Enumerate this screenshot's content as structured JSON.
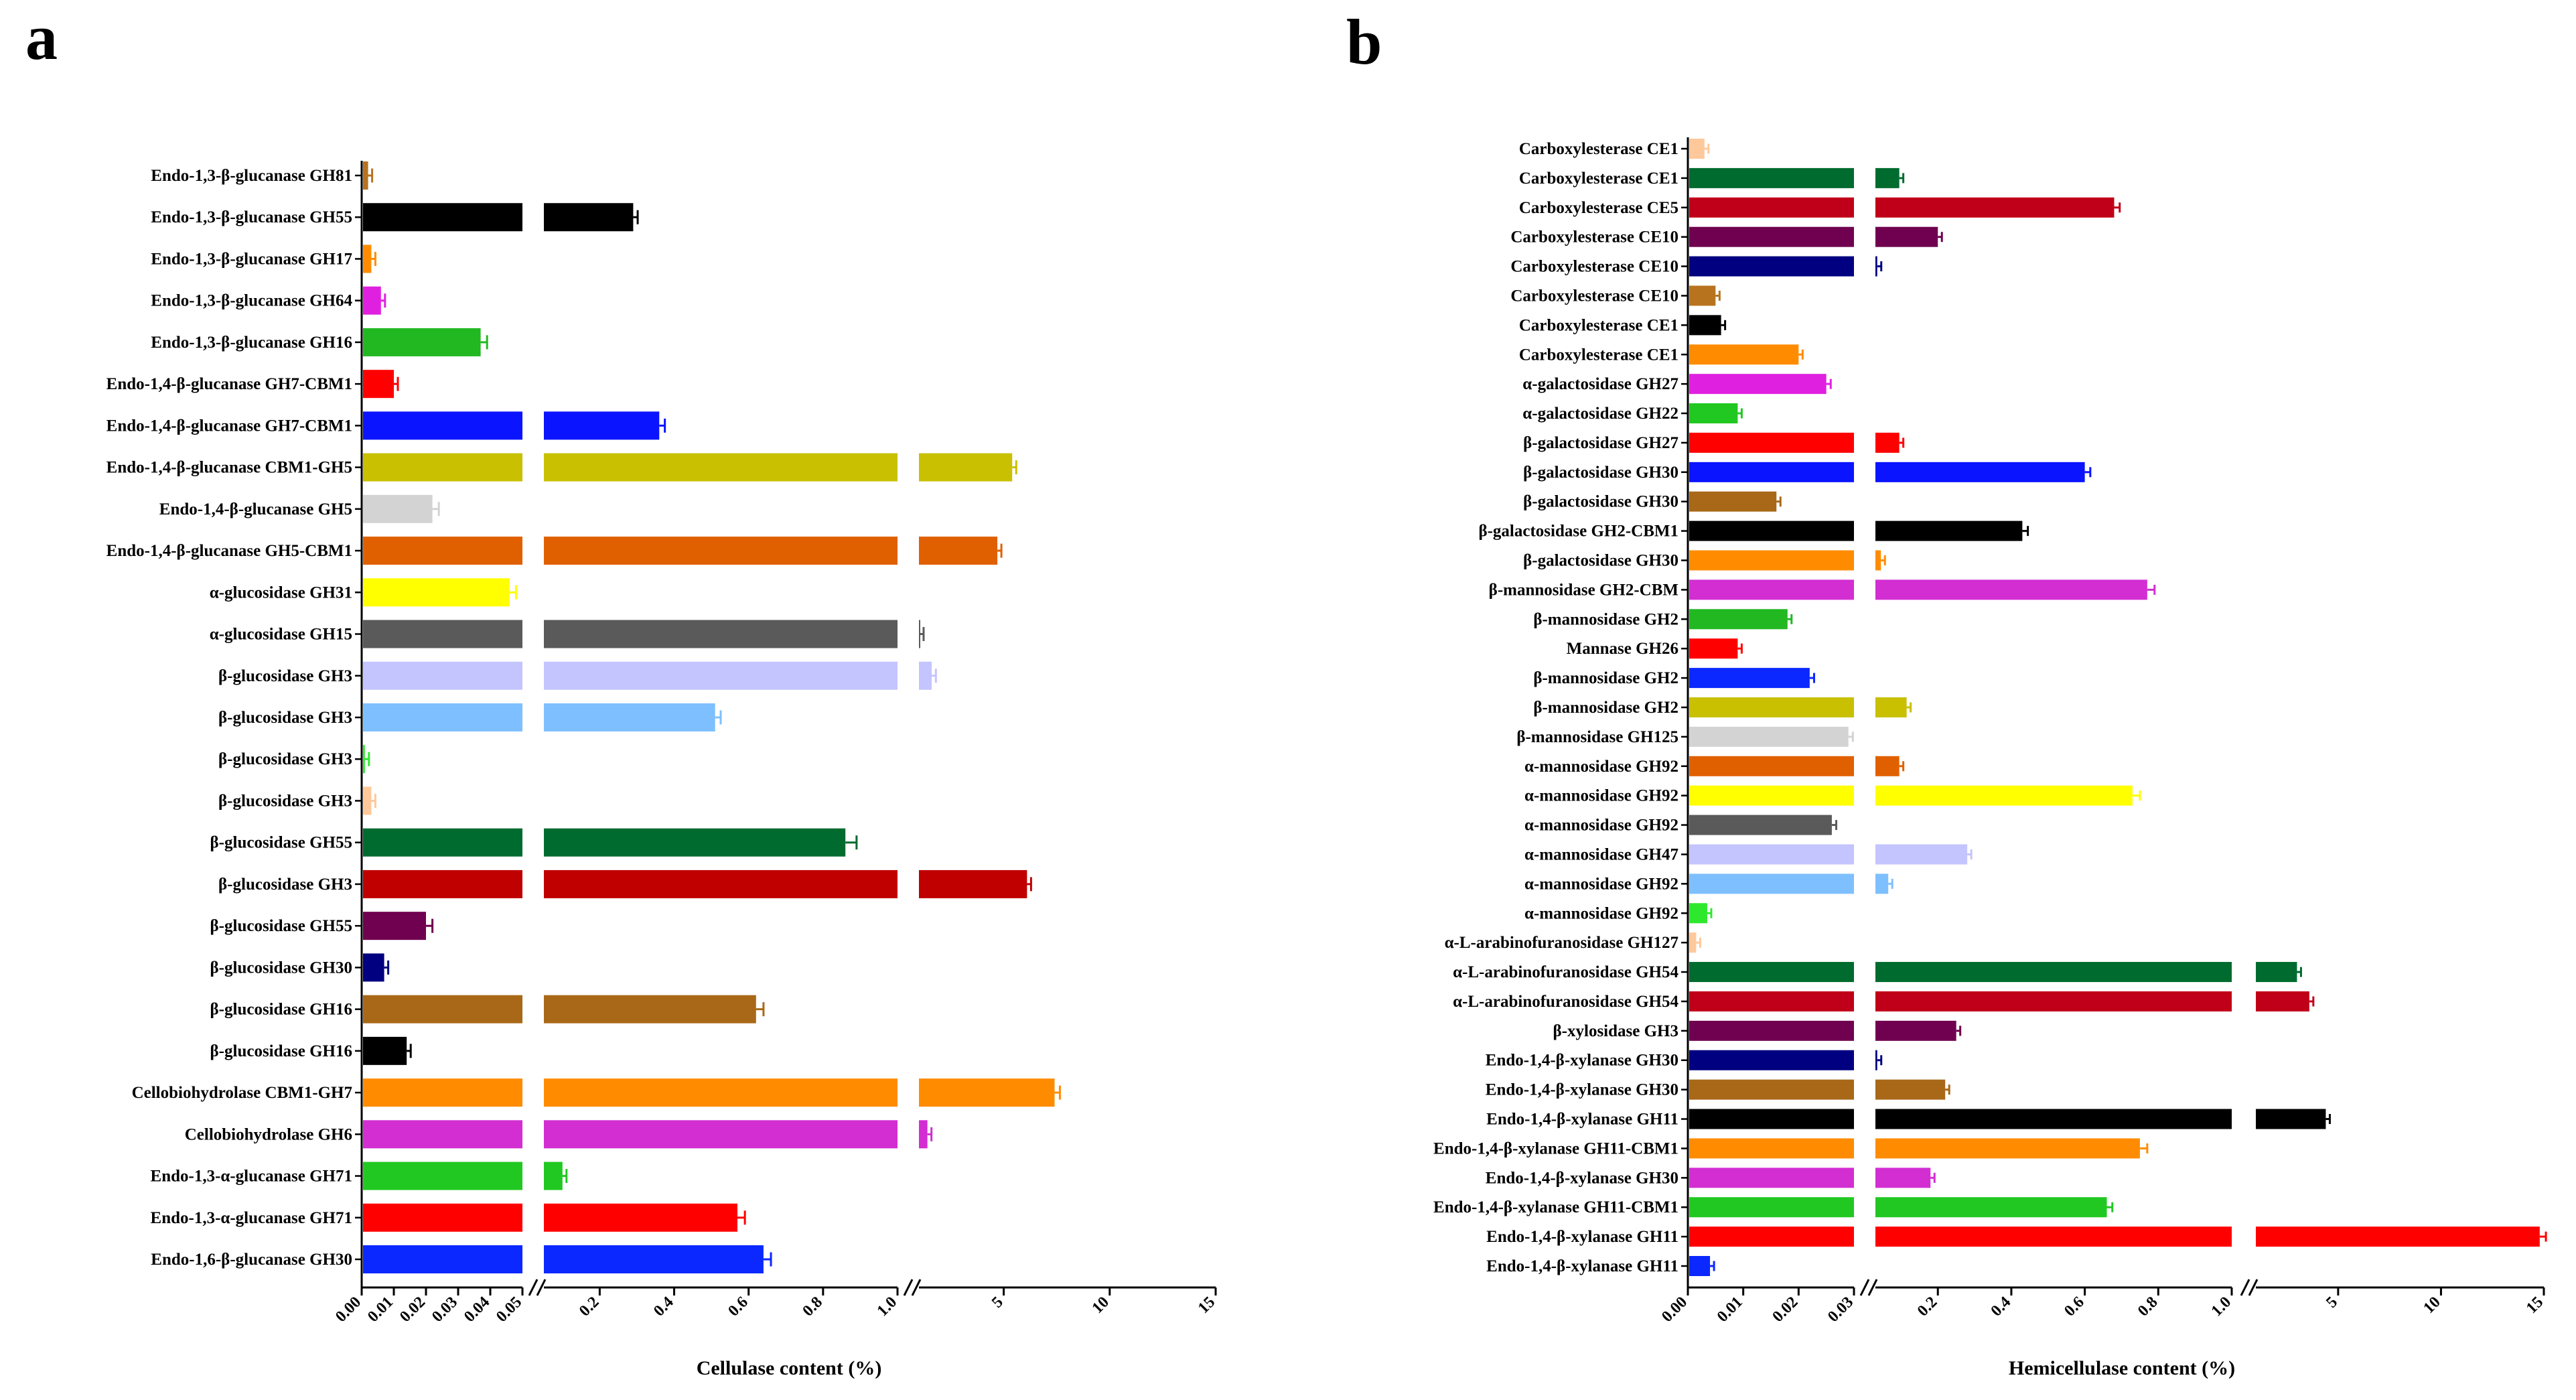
{
  "chart_data": [
    {
      "type": "bar",
      "orientation": "horizontal",
      "panel": "a",
      "xlabel": "Cellulase content (%)",
      "axis_segments": [
        {
          "range": [
            0,
            0.05
          ],
          "ticks": [
            "0.00",
            "0.01",
            "0.02",
            "0.03",
            "0.04",
            "0.05"
          ]
        },
        {
          "range": [
            0.05,
            1.0
          ],
          "ticks": [
            "0.2",
            "0.4",
            "0.6",
            "0.8",
            "1.0"
          ]
        },
        {
          "range": [
            1.0,
            15
          ],
          "ticks": [
            "5",
            "10",
            "15"
          ]
        }
      ],
      "categories": [
        "Endo-1,3-β-glucanase GH81",
        "Endo-1,3-β-glucanase GH55",
        "Endo-1,3-β-glucanase GH17",
        "Endo-1,3-β-glucanase GH64",
        "Endo-1,3-β-glucanase GH16",
        "Endo-1,4-β-glucanase GH7-CBM1",
        "Endo-1,4-β-glucanase GH7-CBM1",
        "Endo-1,4-β-glucanase CBM1-GH5",
        "Endo-1,4-β-glucanase GH5",
        "Endo-1,4-β-glucanase GH5-CBM1",
        "α-glucosidase GH31",
        "α-glucosidase GH15",
        "β-glucosidase GH3",
        "β-glucosidase GH3",
        "β-glucosidase GH3",
        "β-glucosidase GH3",
        "β-glucosidase GH55",
        "β-glucosidase GH3",
        "β-glucosidase GH55",
        "β-glucosidase GH30",
        "β-glucosidase GH16",
        "β-glucosidase GH16",
        "Cellobiohydrolase CBM1-GH7",
        "Cellobiohydrolase GH6",
        "Endo-1,3-α-glucanase GH71",
        "Endo-1,3-α-glucanase GH71",
        "Endo-1,6-β-glucanase GH30"
      ],
      "values": [
        0.002,
        0.29,
        0.003,
        0.006,
        0.037,
        0.01,
        0.36,
        5.4,
        0.022,
        4.7,
        0.046,
        1.03,
        1.6,
        0.51,
        0.001,
        0.003,
        0.86,
        6.1,
        0.02,
        0.007,
        0.62,
        0.014,
        7.4,
        1.4,
        0.1,
        0.57,
        0.64
      ],
      "errors": [
        0.0003,
        0.012,
        0.0003,
        0.0005,
        0.002,
        0.0005,
        0.015,
        0.15,
        0.002,
        0.12,
        0.002,
        0.01,
        0.2,
        0.015,
        0.0002,
        0.0003,
        0.03,
        0.15,
        0.002,
        0.0005,
        0.02,
        0.001,
        0.25,
        0.15,
        0.005,
        0.02,
        0.02
      ],
      "colors": [
        "#B8731F",
        "#000000",
        "#FF8C00",
        "#E020E0",
        "#22B822",
        "#FF0000",
        "#0A14FF",
        "#C8C000",
        "#D3D3D3",
        "#E06000",
        "#FFFF00",
        "#5A5A5A",
        "#C4C4FF",
        "#7EC0FF",
        "#2EE82E",
        "#FFC89A",
        "#006B2E",
        "#C00000",
        "#700050",
        "#000080",
        "#A86818",
        "#000000",
        "#FF8C00",
        "#D22ED2",
        "#22C822",
        "#FF0000",
        "#0A28FF"
      ]
    },
    {
      "type": "bar",
      "orientation": "horizontal",
      "panel": "b",
      "xlabel": "Hemicellulase content (%)",
      "axis_segments": [
        {
          "range": [
            0,
            0.03
          ],
          "ticks": [
            "0.00",
            "0.01",
            "0.02",
            "0.03"
          ]
        },
        {
          "range": [
            0.03,
            1.0
          ],
          "ticks": [
            "0.2",
            "0.4",
            "0.6",
            "0.8",
            "1.0"
          ]
        },
        {
          "range": [
            1.0,
            15
          ],
          "ticks": [
            "5",
            "10",
            "15"
          ]
        }
      ],
      "categories": [
        "Carboxylesterase CE1",
        "Carboxylesterase CE1",
        "Carboxylesterase CE5",
        "Carboxylesterase CE10",
        "Carboxylesterase CE10",
        "Carboxylesterase CE10",
        "Carboxylesterase CE1",
        "Carboxylesterase CE1",
        "α-galactosidase GH27",
        "α-galactosidase GH22",
        "β-galactosidase GH27",
        "β-galactosidase GH30",
        "β-galactosidase GH30",
        "β-galactosidase GH2-CBM1",
        "β-galactosidase GH30",
        "β-mannosidase GH2-CBM",
        "β-mannosidase GH2",
        "Mannase GH26",
        "β-mannosidase GH2",
        "β-mannosidase GH2",
        "β-mannosidase GH125",
        "α-mannosidase GH92",
        "α-mannosidase GH92",
        "α-mannosidase GH92",
        "α-mannosidase GH47",
        "α-mannosidase GH92",
        "α-mannosidase GH92",
        "α-L-arabinofuranosidase GH127",
        "α-L-arabinofuranosidase GH54",
        "α-L-arabinofuranosidase GH54",
        "β-xylosidase GH3",
        "Endo-1,4-β-xylanase GH30",
        "Endo-1,4-β-xylanase GH30",
        "Endo-1,4-β-xylanase GH11",
        "Endo-1,4-β-xylanase GH11-CBM1",
        "Endo-1,4-β-xylanase GH30",
        "Endo-1,4-β-xylanase GH11-CBM1",
        "Endo-1,4-β-xylanase GH11",
        "Endo-1,4-β-xylanase GH11"
      ],
      "values": [
        0.003,
        0.095,
        0.68,
        0.2,
        0.035,
        0.005,
        0.006,
        0.02,
        0.025,
        0.009,
        0.095,
        0.6,
        0.016,
        0.43,
        0.045,
        0.77,
        0.018,
        0.009,
        0.022,
        0.115,
        0.029,
        0.095,
        0.73,
        0.026,
        0.28,
        0.065,
        0.0035,
        0.0015,
        3.0,
        3.6,
        0.25,
        0.035,
        0.22,
        4.4,
        0.75,
        0.18,
        0.66,
        14.8,
        0.004
      ],
      "errors": [
        0.0003,
        0.004,
        0.015,
        0.01,
        0.001,
        0.0003,
        0.0003,
        0.0006,
        0.0008,
        0.0004,
        0.004,
        0.015,
        0.0005,
        0.015,
        0.002,
        0.02,
        0.0006,
        0.0004,
        0.0008,
        0.005,
        0.0008,
        0.004,
        0.02,
        0.0008,
        0.01,
        0.003,
        0.0003,
        0.0002,
        0.12,
        0.12,
        0.01,
        0.001,
        0.01,
        0.12,
        0.02,
        0.006,
        0.015,
        0.3,
        0.0002
      ],
      "colors": [
        "#FFC89A",
        "#006B2E",
        "#C00018",
        "#700050",
        "#000080",
        "#B8731F",
        "#000000",
        "#FF8C00",
        "#E020E0",
        "#22C822",
        "#FF0000",
        "#0A14FF",
        "#A86818",
        "#000000",
        "#FF8C00",
        "#D22ED2",
        "#22B822",
        "#FF0000",
        "#0A28FF",
        "#C8C000",
        "#D3D3D3",
        "#E06000",
        "#FFFF00",
        "#5A5A5A",
        "#C4C4FF",
        "#7EC0FF",
        "#2EE82E",
        "#FFC89A",
        "#006B2E",
        "#C00018",
        "#700050",
        "#000080",
        "#A86818",
        "#000000",
        "#FF8C00",
        "#D22ED2",
        "#22C822",
        "#FF0000",
        "#0A28FF"
      ]
    }
  ]
}
